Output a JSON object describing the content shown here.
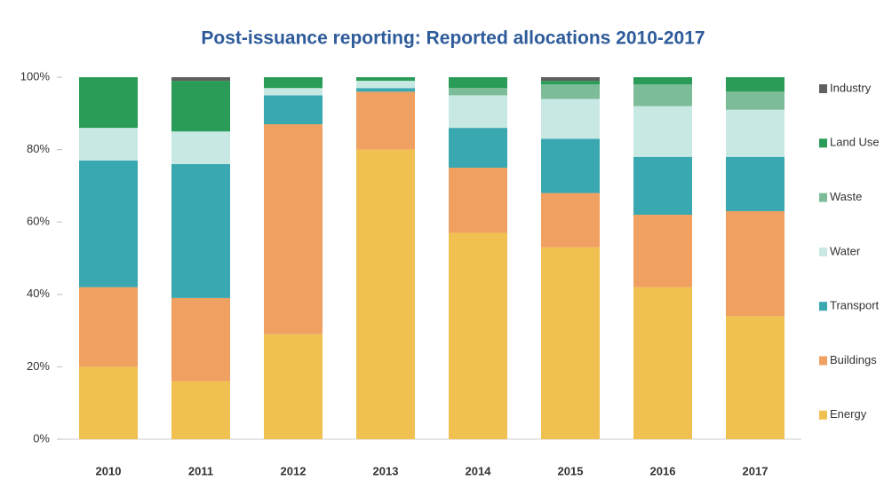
{
  "chart_data": {
    "type": "stacked_bar",
    "title": "Post-issuance reporting: Reported allocations 2010-2017",
    "categories": [
      "2010",
      "2011",
      "2012",
      "2013",
      "2014",
      "2015",
      "2016",
      "2017"
    ],
    "series": [
      {
        "name": "Energy",
        "color": "#f0c050",
        "values": [
          20,
          16,
          29,
          80,
          57,
          53,
          42,
          34
        ]
      },
      {
        "name": "Buildings",
        "color": "#f0a060",
        "values": [
          22,
          23,
          58,
          16,
          18,
          15,
          20,
          29
        ]
      },
      {
        "name": "Transport",
        "color": "#3aa8b0",
        "values": [
          35,
          37,
          8,
          1,
          11,
          15,
          16,
          15
        ]
      },
      {
        "name": "Water",
        "color": "#c8e8e4",
        "values": [
          9,
          9,
          2,
          2,
          9,
          11,
          14,
          13
        ]
      },
      {
        "name": "Waste",
        "color": "#7cbc98",
        "values": [
          0,
          0,
          0,
          0,
          2,
          4,
          6,
          5
        ]
      },
      {
        "name": "Land Use",
        "color": "#2a9c58",
        "values": [
          14,
          14,
          3,
          1,
          3,
          1,
          2,
          4
        ]
      },
      {
        "name": "Industry",
        "color": "#606060",
        "values": [
          0,
          1,
          0,
          0,
          0,
          1,
          0,
          0
        ]
      }
    ],
    "ylim": [
      0,
      100
    ],
    "yticks": [
      {
        "value": 0,
        "label": "0%"
      },
      {
        "value": 20,
        "label": "20%"
      },
      {
        "value": 40,
        "label": "40%"
      },
      {
        "value": 60,
        "label": "60%"
      },
      {
        "value": 80,
        "label": "80%"
      },
      {
        "value": 100,
        "label": "100%"
      }
    ],
    "legend": "right"
  }
}
